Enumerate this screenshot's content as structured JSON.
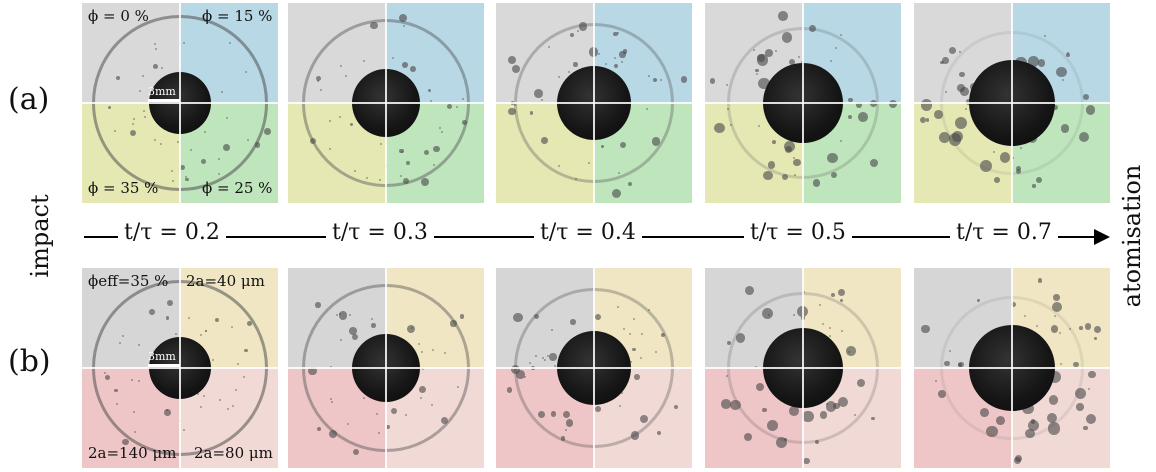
{
  "labels": {
    "row_a": "(a)",
    "row_b": "(b)",
    "left": "impact",
    "right": "atomisation"
  },
  "timeline": {
    "ticks": [
      "t/τ = 0.2",
      "t/τ = 0.3",
      "t/τ = 0.4",
      "t/τ = 0.5",
      "t/τ = 0.7"
    ]
  },
  "row_a": {
    "tl": "ϕ = 0 %",
    "tr": "ϕ = 15 %",
    "bl": "ϕ = 35 %",
    "br": "ϕ = 25 %",
    "scale": "3mm",
    "colors": {
      "tl": "#d9d9d9",
      "tr": "#b8d8e6",
      "bl": "#e6e8b4",
      "br": "#bfe5bd"
    }
  },
  "row_b": {
    "tl": "ϕeff=35 %",
    "tr": "2a=40 μm",
    "bl": "2a=140 μm",
    "br": "2a=80 μm",
    "scale": "3mm",
    "colors": {
      "tl": "#d6d6d6",
      "tr": "#f0e6c4",
      "bl": "#efc6c8",
      "br": "#f1d9d6"
    }
  }
}
